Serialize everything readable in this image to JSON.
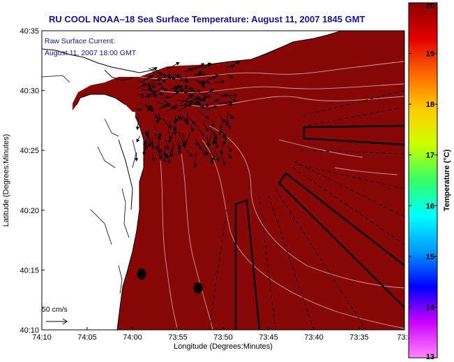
{
  "title": "RU COOL  NOAA–18  Sea Surface Temperature:  August 11, 2007 1845 GMT",
  "annotation": {
    "line1": "Raw Surface Current:",
    "line2": "August 11, 2007 18:00 GMT"
  },
  "scale_label": "50 cm/s",
  "x_axis": {
    "label": "Longitude (Degrees:Minutes)",
    "ticks": [
      "74:10",
      "74:05",
      "74:00",
      "73:55",
      "73:50",
      "73:45",
      "73:40",
      "73:35",
      "73:3"
    ]
  },
  "y_axis": {
    "label": "Latitude (Degrees:Minutes)",
    "ticks": [
      "40:35",
      "40:30",
      "40:25",
      "40:20",
      "40:15",
      "40:10"
    ]
  },
  "colorbar": {
    "label": "Temperature (°C)",
    "ticks": [
      "20",
      "19",
      "18",
      "17",
      "16",
      "15",
      "14",
      "13"
    ],
    "colors": [
      "#8b0000",
      "#e00000",
      "#ff6600",
      "#ffcc00",
      "#ccff00",
      "#33ff66",
      "#00ffff",
      "#0099ff",
      "#0000ff",
      "#cc00ff",
      "#ff88ff"
    ]
  },
  "colors": {
    "sea": "#870707",
    "land": "#ffffff",
    "contour": "#c9a0a0",
    "title": "#14148c"
  }
}
